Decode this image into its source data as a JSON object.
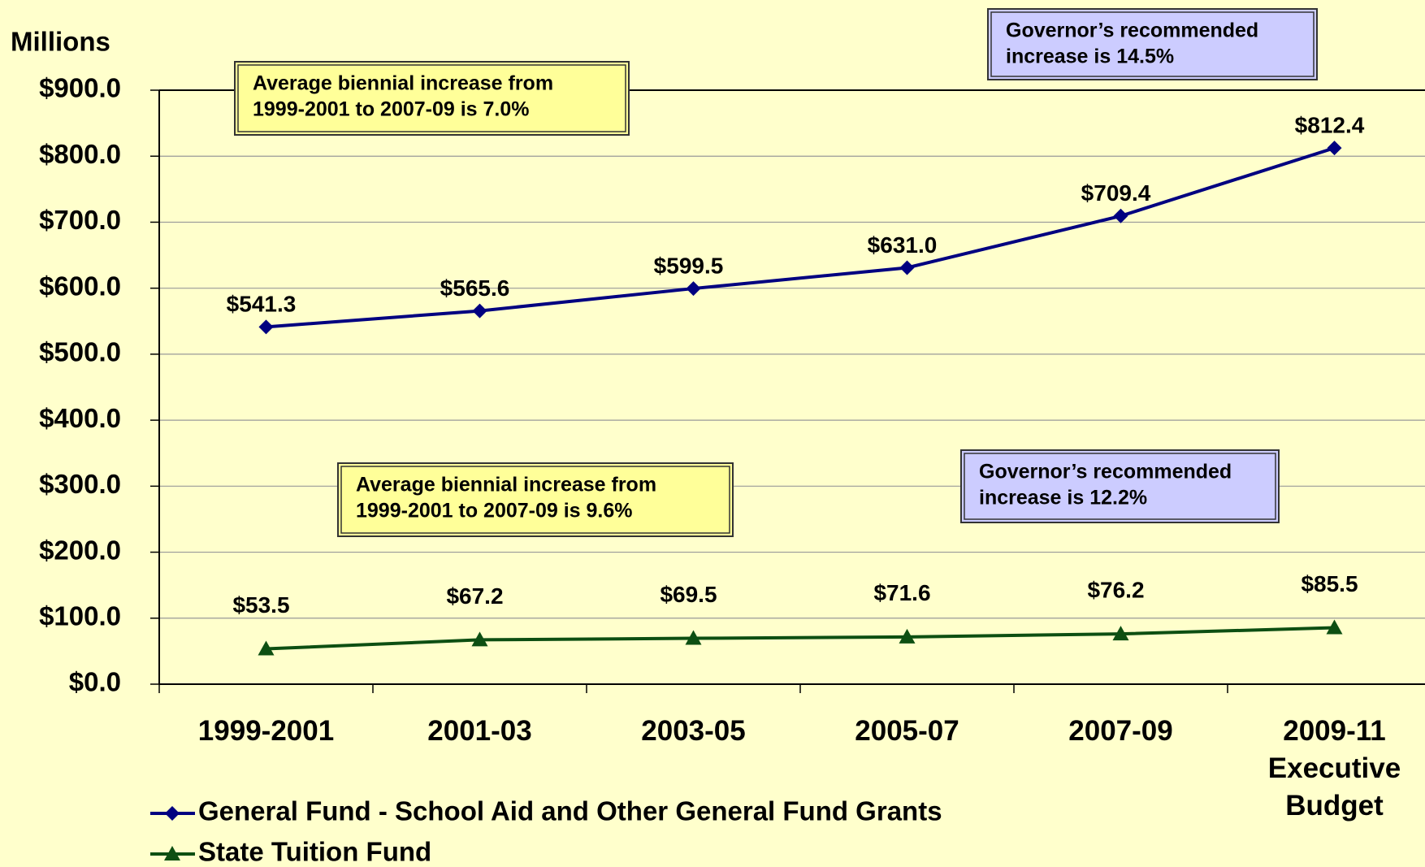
{
  "chart_data": {
    "type": "line",
    "y_axis_label": "Millions",
    "categories": [
      "1999-2001",
      "2001-03",
      "2003-05",
      "2005-07",
      "2007-09",
      "2009-11 Executive Budget"
    ],
    "series": [
      {
        "name": "General Fund - School Aid and Other General Fund Grants",
        "color": "#000080",
        "marker": "diamond",
        "values": [
          541.3,
          565.6,
          599.5,
          631.0,
          709.4,
          812.4
        ],
        "value_labels": [
          "$541.3",
          "$565.6",
          "$599.5",
          "$631.0",
          "$709.4",
          "$812.4"
        ]
      },
      {
        "name": "State Tuition Fund",
        "color": "#0d4f12",
        "marker": "triangle",
        "values": [
          53.5,
          67.2,
          69.5,
          71.6,
          76.2,
          85.5
        ],
        "value_labels": [
          "$53.5",
          "$67.2",
          "$69.5",
          "$71.6",
          "$76.2",
          "$85.5"
        ]
      }
    ],
    "ylim": [
      0,
      900
    ],
    "yticks": [
      {
        "value": 0,
        "label": "$0.0"
      },
      {
        "value": 100,
        "label": "$100.0"
      },
      {
        "value": 200,
        "label": "$200.0"
      },
      {
        "value": 300,
        "label": "$300.0"
      },
      {
        "value": 400,
        "label": "$400.0"
      },
      {
        "value": 500,
        "label": "$500.0"
      },
      {
        "value": 600,
        "label": "$600.0"
      },
      {
        "value": 700,
        "label": "$700.0"
      },
      {
        "value": 800,
        "label": "$800.0"
      },
      {
        "value": 900,
        "label": "$900.0"
      }
    ],
    "grid": true,
    "legend": "bottom-left",
    "annotations": [
      {
        "lines": [
          "Average biennial increase from",
          "1999-2001 to 2007-09 is 7.0%"
        ],
        "color": "#ffff99"
      },
      {
        "lines": [
          "Governor’s recommended",
          "increase is 14.5%"
        ],
        "color": "#ccccff"
      },
      {
        "lines": [
          "Average biennial increase from",
          "1999-2001 to 2007-09 is 9.6%"
        ],
        "color": "#ffff99"
      },
      {
        "lines": [
          "Governor’s recommended",
          "increase is 12.2%"
        ],
        "color": "#ccccff"
      }
    ]
  }
}
